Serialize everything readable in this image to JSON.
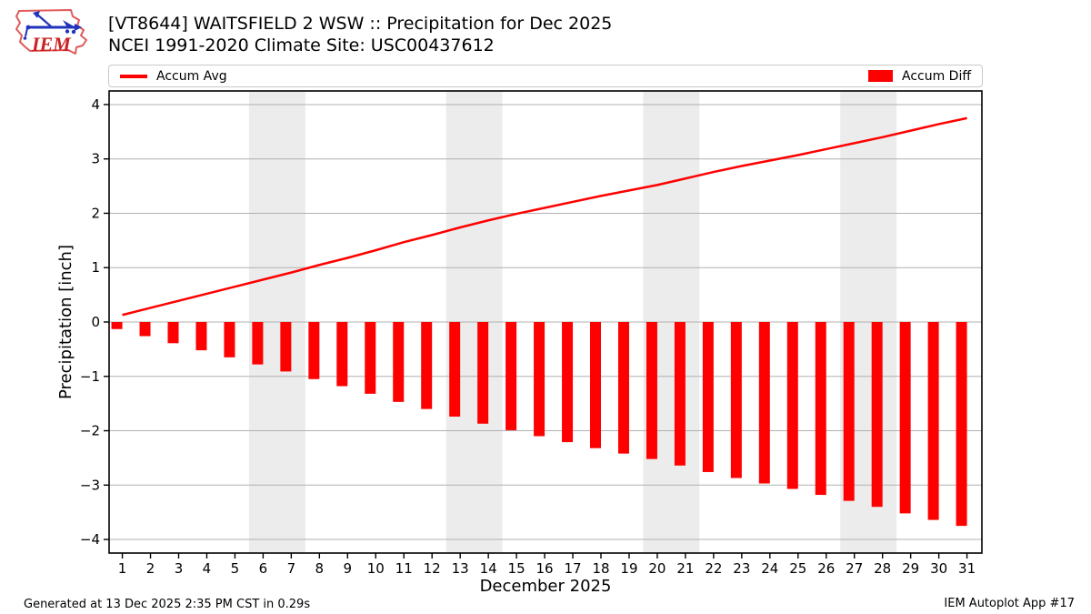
{
  "header": {
    "logo_text": "IEM",
    "title_line1": "[VT8644] WAITSFIELD 2 WSW :: Precipitation for Dec 2025",
    "title_line2": "NCEI 1991-2020 Climate Site: USC00437612"
  },
  "legend": {
    "avg_label": "Accum Avg",
    "diff_label": "Accum Diff"
  },
  "footer": {
    "left": "Generated at 13 Dec 2025 2:35 PM CST in 0.29s",
    "right": "IEM Autoplot App #17"
  },
  "colors": {
    "accum_red": "#ff0000",
    "grid": "#b0b0b0",
    "weekend_band": "#ececec",
    "spine": "#000000",
    "tick_label": "#000000",
    "logo_outline": "#e05a5a",
    "logo_vane": "#2233bb",
    "logo_text": "#cc2222"
  },
  "chart_data": {
    "type": "combo",
    "title": "[VT8644] WAITSFIELD 2 WSW :: Precipitation for Dec 2025 | NCEI 1991-2020 Climate Site: USC00437612",
    "xlabel": "December 2025",
    "ylabel": "Precipitation [inch]",
    "x": [
      1,
      2,
      3,
      4,
      5,
      6,
      7,
      8,
      9,
      10,
      11,
      12,
      13,
      14,
      15,
      16,
      17,
      18,
      19,
      20,
      21,
      22,
      23,
      24,
      25,
      26,
      27,
      28,
      29,
      30,
      31
    ],
    "series": [
      {
        "name": "Accum Avg",
        "type": "line",
        "color": "#ff0000",
        "values": [
          0.13,
          0.26,
          0.39,
          0.52,
          0.65,
          0.78,
          0.91,
          1.05,
          1.18,
          1.32,
          1.47,
          1.6,
          1.74,
          1.87,
          1.99,
          2.1,
          2.21,
          2.32,
          2.42,
          2.52,
          2.64,
          2.76,
          2.87,
          2.97,
          3.07,
          3.18,
          3.29,
          3.4,
          3.52,
          3.64,
          3.75
        ]
      },
      {
        "name": "Accum Diff",
        "type": "bar",
        "color": "#ff0000",
        "values": [
          -0.13,
          -0.26,
          -0.39,
          -0.52,
          -0.65,
          -0.78,
          -0.91,
          -1.05,
          -1.18,
          -1.32,
          -1.47,
          -1.6,
          -1.74,
          -1.87,
          -1.99,
          -2.1,
          -2.21,
          -2.32,
          -2.42,
          -2.52,
          -2.64,
          -2.76,
          -2.87,
          -2.97,
          -3.07,
          -3.18,
          -3.29,
          -3.4,
          -3.52,
          -3.64,
          -3.75
        ]
      }
    ],
    "xlim": [
      0.53,
      31.53
    ],
    "ylim": [
      -4.25,
      4.25
    ],
    "yticks": [
      -4,
      -3,
      -2,
      -1,
      0,
      1,
      2,
      3,
      4
    ],
    "grid": "horizontal",
    "legend_position": "top",
    "weekend_bands": [
      [
        5.5,
        7.5
      ],
      [
        12.5,
        14.5
      ],
      [
        19.5,
        21.5
      ],
      [
        26.5,
        28.5
      ]
    ]
  }
}
